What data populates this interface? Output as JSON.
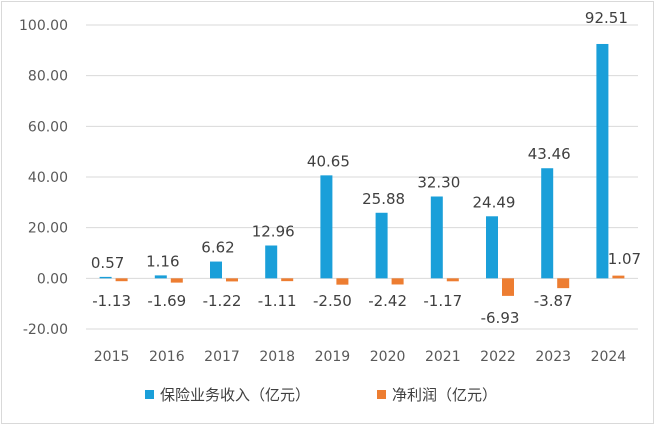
{
  "chart_data": {
    "type": "bar",
    "categories": [
      "2015",
      "2016",
      "2017",
      "2018",
      "2019",
      "2020",
      "2021",
      "2022",
      "2023",
      "2024"
    ],
    "series": [
      {
        "name": "保险业务收入（亿元）",
        "color": "#1a9fd9",
        "values": [
          0.57,
          1.16,
          6.62,
          12.96,
          40.65,
          25.88,
          32.3,
          24.49,
          43.46,
          92.51
        ],
        "labels": [
          "0.57",
          "1.16",
          "6.62",
          "12.96",
          "40.65",
          "25.88",
          "32.30",
          "24.49",
          "43.46",
          "92.51"
        ]
      },
      {
        "name": "净利润（亿元）",
        "color": "#ed7d31",
        "values": [
          -1.13,
          -1.69,
          -1.22,
          -1.11,
          -2.5,
          -2.42,
          -1.17,
          -6.93,
          -3.87,
          1.07
        ],
        "labels": [
          "-1.13",
          "-1.69",
          "-1.22",
          "-1.11",
          "-2.50",
          "-2.42",
          "-1.17",
          "-6.93",
          "-3.87",
          "1.07"
        ]
      }
    ],
    "yticks": [
      "100.00",
      "80.00",
      "60.00",
      "40.00",
      "20.00",
      "0.00",
      "-20.00"
    ],
    "ytick_values": [
      100,
      80,
      60,
      40,
      20,
      0,
      -20
    ],
    "ylim": [
      -20,
      100
    ],
    "title": "",
    "xlabel": "",
    "ylabel": "",
    "grid": true,
    "legend_position": "bottom"
  }
}
